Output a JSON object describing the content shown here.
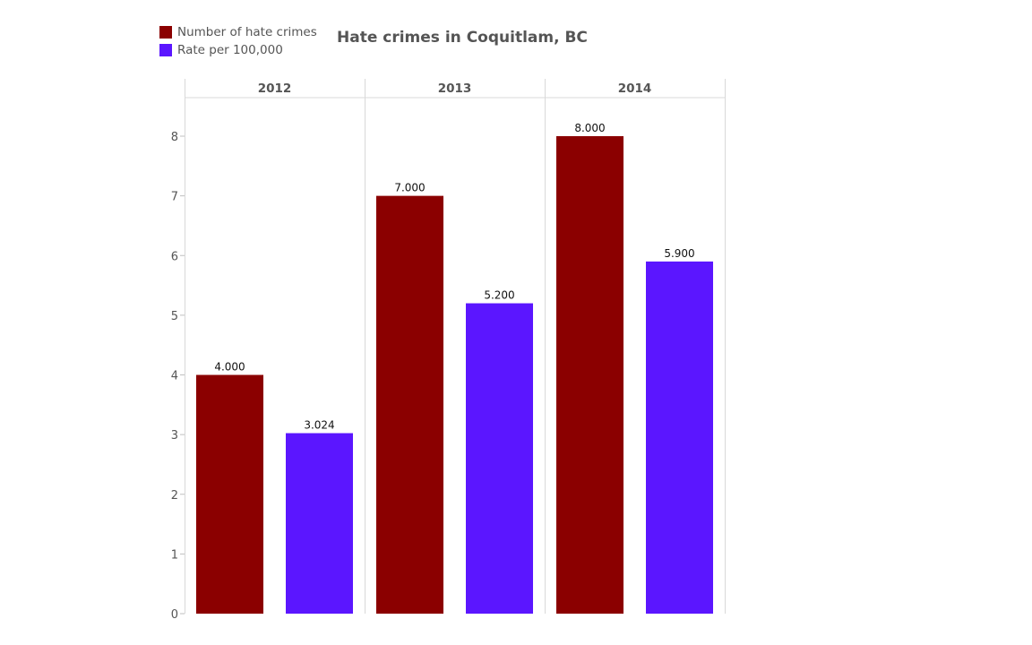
{
  "chart_data": {
    "type": "bar",
    "title": "Hate crimes in Coquitlam, BC",
    "xlabel": "",
    "ylabel": "",
    "ylim": [
      0,
      8.5
    ],
    "yticks": [
      0,
      1,
      2,
      3,
      4,
      5,
      6,
      7,
      8
    ],
    "categories": [
      "2012",
      "2013",
      "2014"
    ],
    "series": [
      {
        "name": "Number of hate crimes",
        "color": "#8b0000",
        "values": [
          4.0,
          7.0,
          8.0
        ],
        "labels": [
          "4.000",
          "7.000",
          "8.000"
        ]
      },
      {
        "name": "Rate per 100,000",
        "color": "#5b16ff",
        "values": [
          3.024,
          5.2,
          5.9
        ],
        "labels": [
          "3.024",
          "5.200",
          "5.900"
        ]
      }
    ],
    "legend_position": "top-left"
  }
}
